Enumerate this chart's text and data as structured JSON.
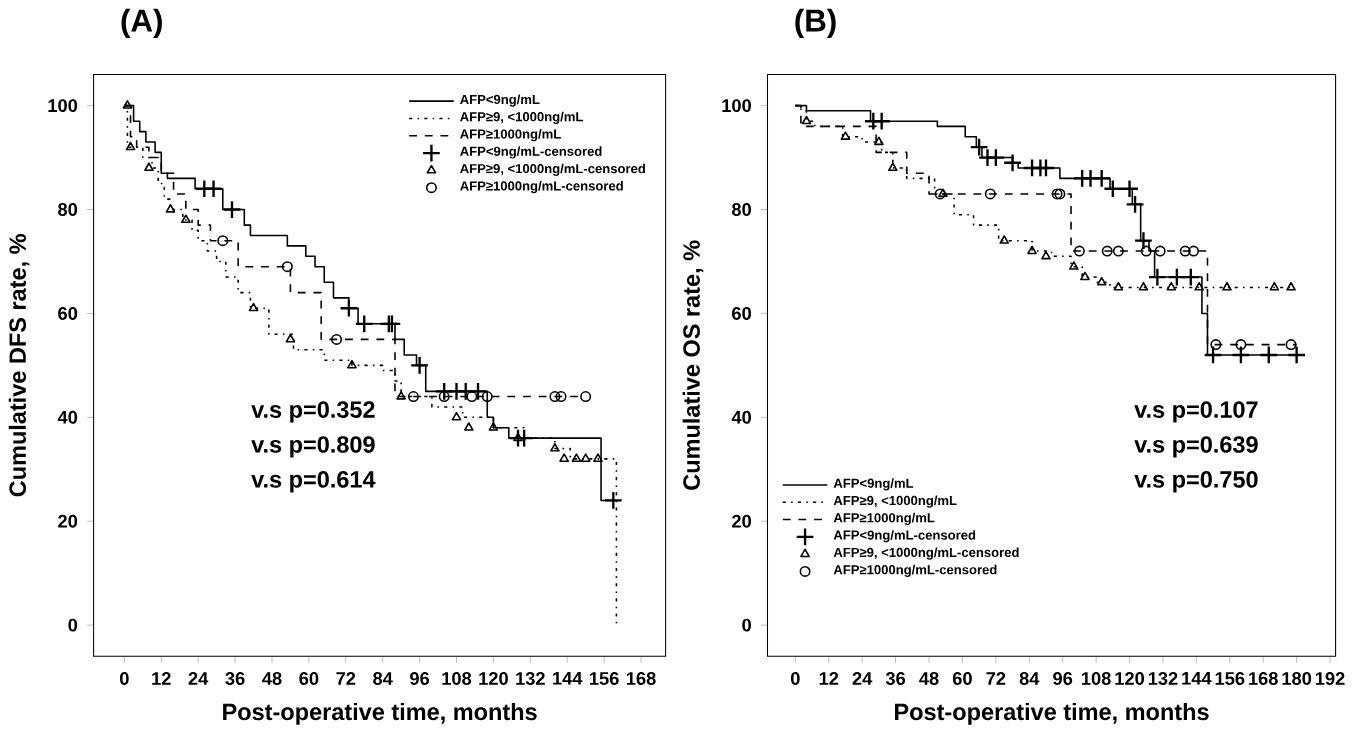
{
  "chart_data": [
    {
      "type": "step",
      "title": "(A)",
      "xlabel": "Post-operative time, months",
      "ylabel": "Cumulative DFS rate, %",
      "xlim": [
        -10,
        176
      ],
      "ylim": [
        -6,
        106
      ],
      "xticks": [
        0,
        12,
        24,
        36,
        48,
        60,
        72,
        84,
        96,
        108,
        120,
        132,
        144,
        156,
        168
      ],
      "yticks": [
        0,
        20,
        40,
        60,
        80,
        100
      ],
      "legend": "top right",
      "annotations": [
        "v.s p=0.352",
        "v.s p=0.809",
        "v.s p=0.614"
      ],
      "series": [
        {
          "name": "AFP<9ng/mL",
          "color": "#000000",
          "line_style": "solid",
          "x": [
            0,
            3,
            5,
            7,
            10,
            12,
            14,
            23,
            32,
            39,
            41,
            53,
            59,
            62,
            65,
            68,
            73,
            76,
            88,
            91,
            95,
            98,
            118,
            120,
            125,
            155,
            159
          ],
          "values": [
            100,
            97,
            95,
            93,
            91,
            87,
            86,
            84,
            80,
            77,
            75,
            73,
            71,
            69,
            66,
            63,
            61,
            58,
            55,
            52,
            50,
            45,
            40,
            38,
            36,
            24,
            24
          ]
        },
        {
          "name": "AFP≥9, <1000ng/mL",
          "color": "#000000",
          "line_style": "dotted",
          "x": [
            0,
            1,
            6,
            9,
            11,
            13,
            15,
            19,
            22,
            24,
            27,
            30,
            33,
            37,
            41,
            47,
            55,
            65,
            74,
            84,
            88,
            90,
            100,
            110,
            120,
            130,
            140,
            145,
            160
          ],
          "values": [
            100,
            92,
            90,
            88,
            85,
            82,
            80,
            78,
            76,
            74,
            72,
            70,
            67,
            64,
            61,
            56,
            53,
            51,
            50,
            49,
            47,
            44,
            42,
            40,
            38,
            36,
            34,
            32,
            0
          ]
        },
        {
          "name": "AFP≥1000ng/mL",
          "color": "#000000",
          "line_style": "dashed",
          "x": [
            0,
            2,
            4,
            8,
            12,
            16,
            20,
            24,
            28,
            37,
            54,
            64,
            88,
            150
          ],
          "values": [
            100,
            94,
            92,
            90,
            87,
            83,
            80,
            77,
            74,
            69,
            64,
            55,
            44,
            44
          ]
        },
        {
          "type": "scatter",
          "name": "AFP<9ng/mL-censored",
          "color": "#000000",
          "marker": "cross",
          "x": [
            26,
            29,
            35,
            73,
            78,
            86,
            87,
            96,
            104,
            108,
            111,
            115,
            128,
            130,
            159
          ],
          "values": [
            84,
            84,
            80,
            61,
            58,
            58,
            58,
            50,
            45,
            45,
            45,
            45,
            36,
            36,
            24
          ]
        },
        {
          "type": "scatter",
          "name": "AFP≥9, <1000ng/mL-censored",
          "color": "#000000",
          "marker": "triangle",
          "x": [
            1,
            2,
            8,
            15,
            20,
            42,
            54,
            74,
            90,
            108,
            112,
            120,
            128,
            140,
            143,
            147,
            150,
            154
          ],
          "values": [
            100,
            92,
            88,
            80,
            78,
            61,
            55,
            50,
            44,
            40,
            38,
            38,
            36,
            34,
            32,
            32,
            32,
            32
          ]
        },
        {
          "type": "scatter",
          "name": "AFP≥1000ng/mL-censored",
          "color": "#000000",
          "marker": "circle",
          "x": [
            32,
            53,
            69,
            94,
            104,
            113,
            118,
            140,
            142,
            150
          ],
          "values": [
            74,
            69,
            55,
            44,
            44,
            44,
            44,
            44,
            44,
            44
          ]
        }
      ]
    },
    {
      "type": "step",
      "title": "(B)",
      "xlabel": "Post-operative time, months",
      "ylabel": "Cumulative OS rate, %",
      "xlim": [
        -10,
        194
      ],
      "ylim": [
        -6,
        106
      ],
      "xticks": [
        0,
        12,
        24,
        36,
        48,
        60,
        72,
        84,
        96,
        108,
        120,
        132,
        144,
        156,
        168,
        180,
        192
      ],
      "yticks": [
        0,
        20,
        40,
        60,
        80,
        100
      ],
      "legend": "bottom left",
      "annotations": [
        "v.s p=0.107",
        "v.s p=0.639",
        "v.s p=0.750"
      ],
      "series": [
        {
          "name": "AFP<9ng/mL",
          "color": "#000000",
          "line_style": "solid",
          "x": [
            0,
            4,
            27,
            51,
            61,
            65,
            67,
            78,
            80,
            95,
            113,
            121,
            124,
            127,
            129,
            146,
            148,
            180
          ],
          "values": [
            100,
            99,
            97,
            96,
            94,
            92,
            90,
            89,
            88,
            86,
            84,
            81,
            74,
            72,
            67,
            60,
            52,
            52
          ]
        },
        {
          "name": "AFP≥9, <1000ng/mL",
          "color": "#000000",
          "line_style": "dotted",
          "x": [
            0,
            2,
            4,
            7,
            17,
            24,
            31,
            35,
            40,
            50,
            57,
            64,
            73,
            85,
            92,
            99,
            103,
            108,
            113,
            178
          ],
          "values": [
            100,
            99,
            97,
            96,
            94,
            93,
            91,
            88,
            86,
            83,
            79,
            77,
            74,
            72,
            71,
            69,
            67,
            66,
            65,
            65
          ]
        },
        {
          "name": "AFP≥1000ng/mL",
          "color": "#000000",
          "line_style": "dashed",
          "x": [
            0,
            2,
            29,
            40,
            48,
            99,
            148,
            180
          ],
          "values": [
            100,
            96,
            91,
            87,
            83,
            72,
            54,
            54
          ]
        },
        {
          "type": "scatter",
          "name": "AFP<9ng/mL-censored",
          "color": "#000000",
          "marker": "cross",
          "x": [
            28,
            31,
            66,
            69,
            72,
            78,
            85,
            88,
            90,
            103,
            106,
            110,
            114,
            120,
            122,
            125,
            130,
            137,
            142,
            150,
            160,
            170,
            180
          ],
          "values": [
            97,
            97,
            92,
            90,
            90,
            89,
            88,
            88,
            88,
            86,
            86,
            86,
            84,
            84,
            81,
            74,
            67,
            67,
            67,
            52,
            52,
            52,
            52
          ]
        },
        {
          "type": "scatter",
          "name": "AFP≥9, <1000ng/mL-censored",
          "color": "#000000",
          "marker": "triangle",
          "x": [
            4,
            18,
            30,
            35,
            53,
            75,
            85,
            90,
            100,
            104,
            110,
            116,
            125,
            135,
            145,
            155,
            172,
            178
          ],
          "values": [
            97,
            94,
            93,
            88,
            83,
            74,
            72,
            71,
            69,
            67,
            66,
            65,
            65,
            65,
            65,
            65,
            65,
            65
          ]
        },
        {
          "type": "scatter",
          "name": "AFP≥1000ng/mL-censored",
          "color": "#000000",
          "marker": "circle",
          "x": [
            52,
            70,
            94,
            95,
            102,
            112,
            116,
            126,
            131,
            140,
            143,
            151,
            160,
            178
          ],
          "values": [
            83,
            83,
            83,
            83,
            72,
            72,
            72,
            72,
            72,
            72,
            72,
            54,
            54,
            54
          ]
        }
      ]
    }
  ]
}
